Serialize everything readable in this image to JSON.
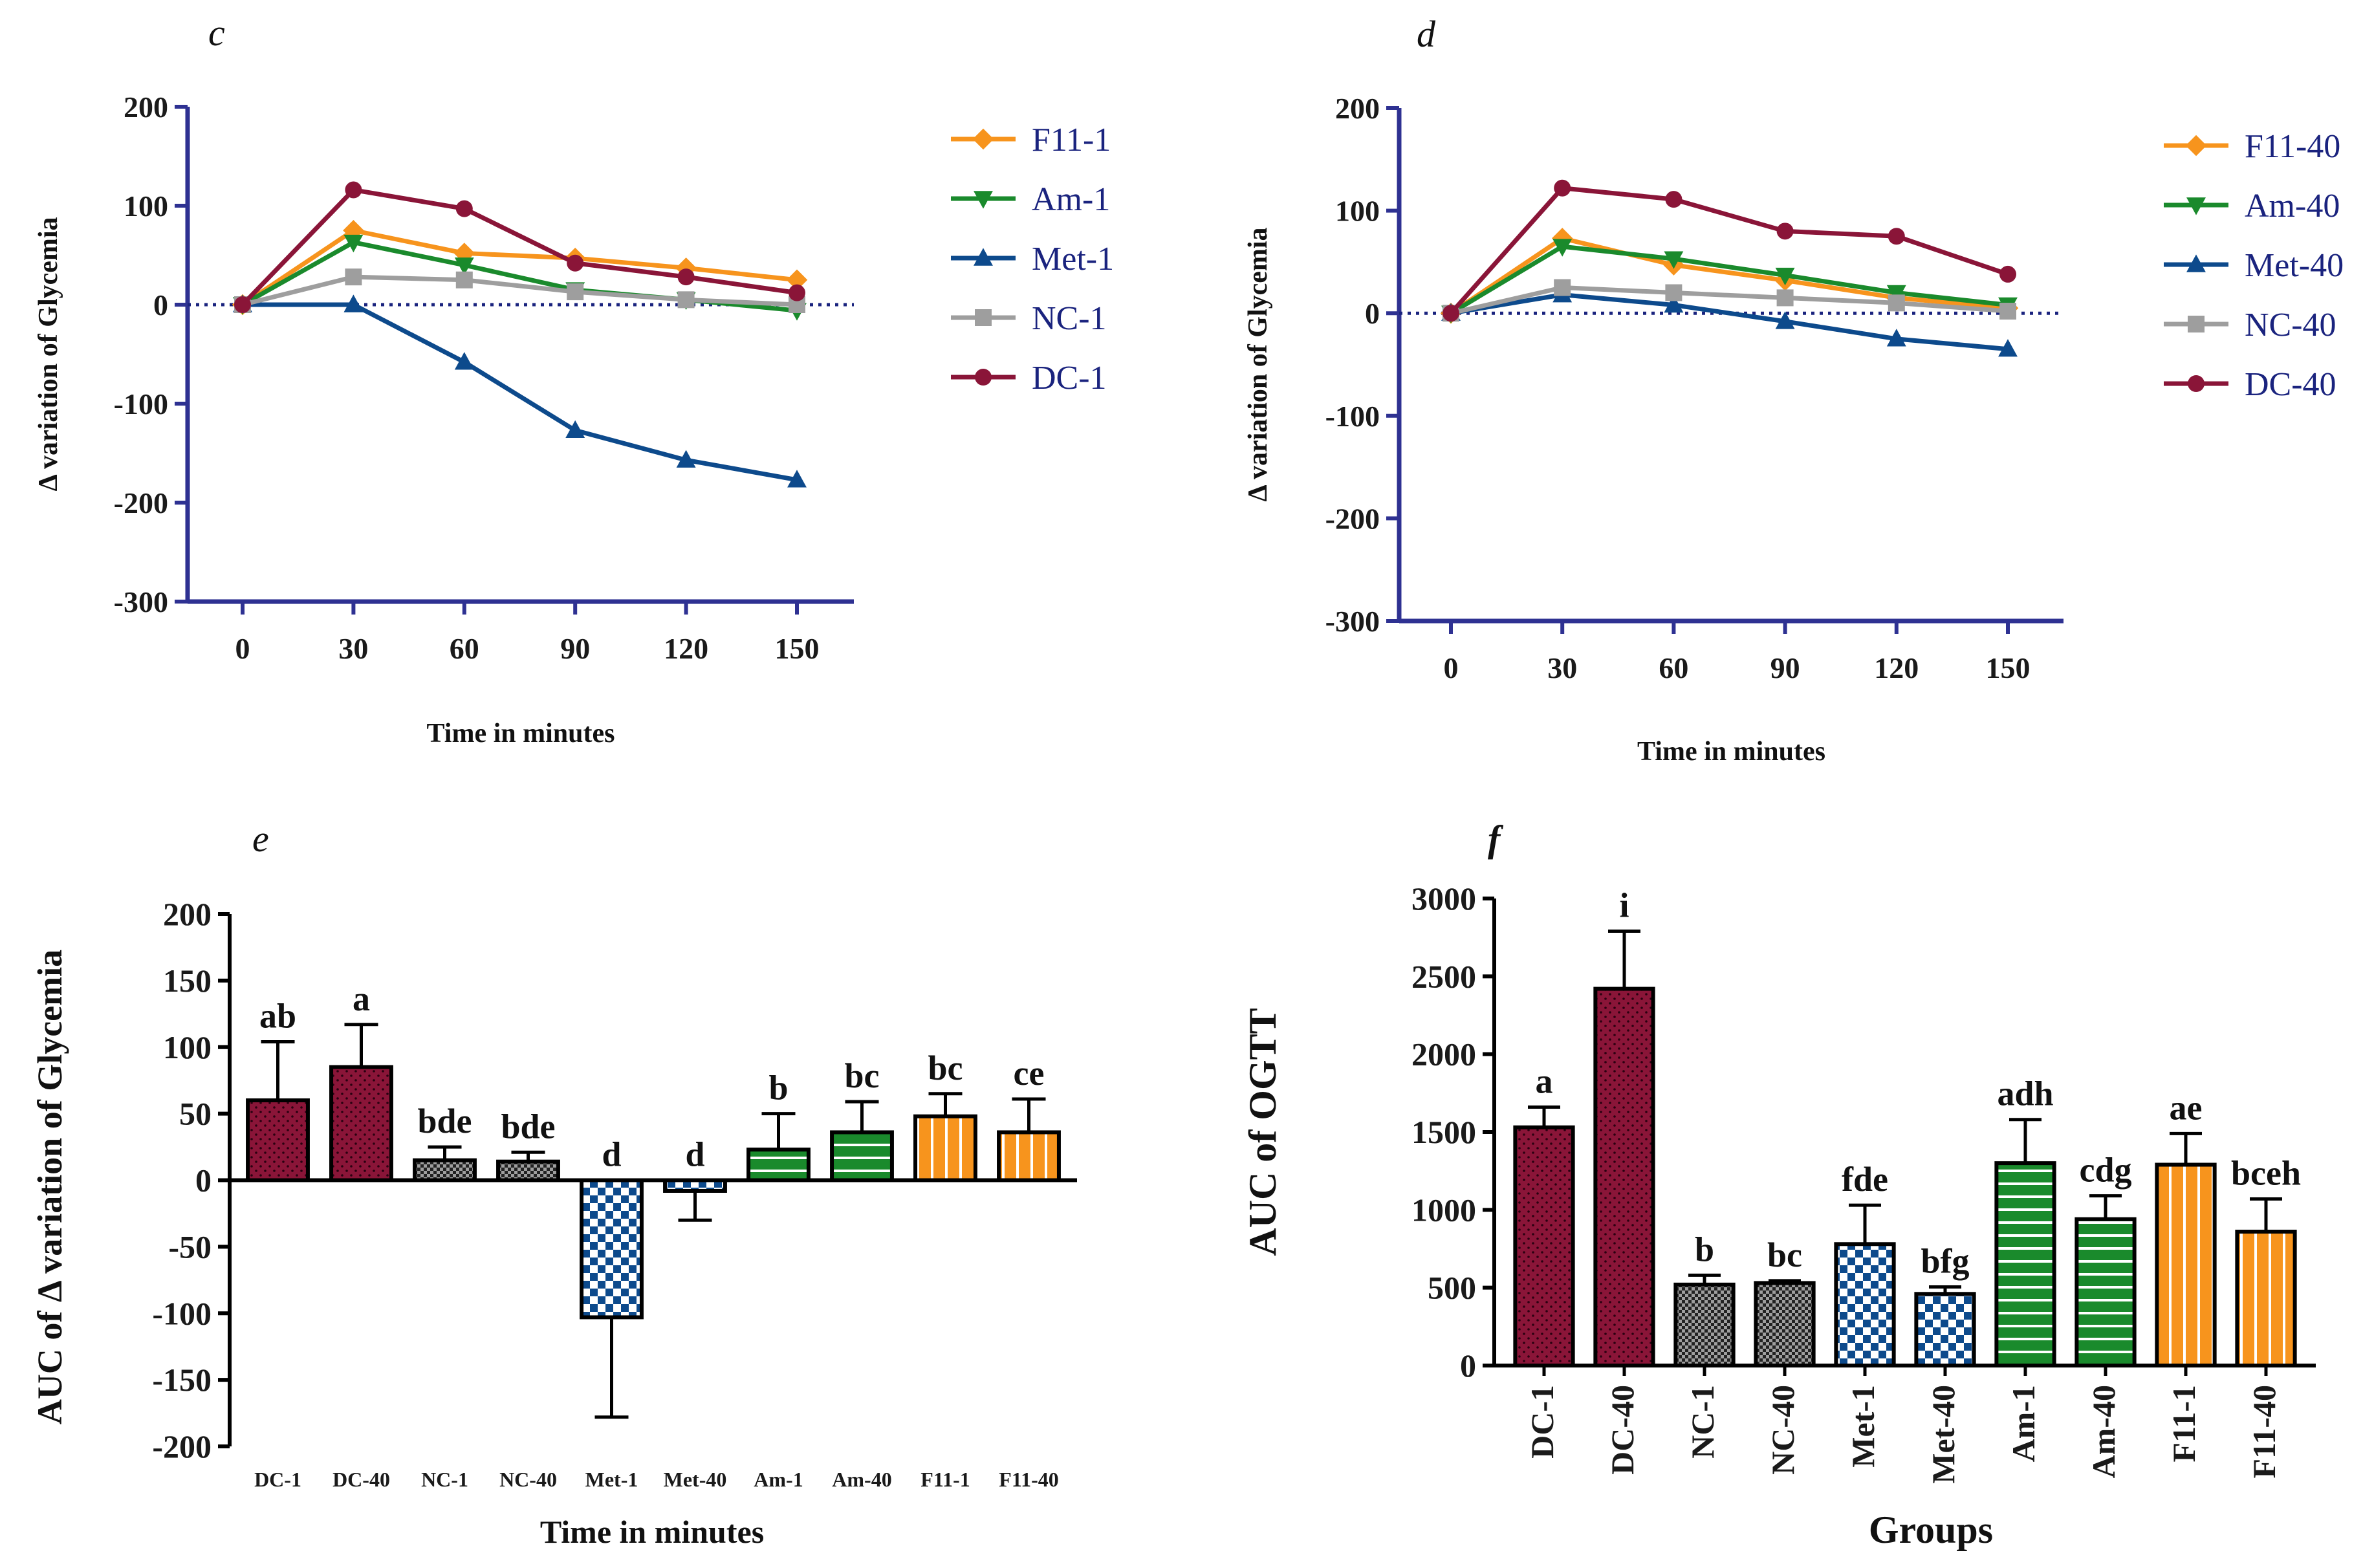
{
  "panels": {
    "c": "c",
    "d": "d",
    "e": "e",
    "f": "f"
  },
  "colors": {
    "F11": "#f7941d",
    "Am": "#1a8a2c",
    "Met": "#0d4a8c",
    "NC": "#9e9e9e",
    "DC": "#8a1538",
    "axis": "#2e3192",
    "zeroline": "#1a237e"
  },
  "chart_data": [
    {
      "id": "c",
      "type": "line",
      "title": "",
      "xlabel": "Time in minutes",
      "ylabel": "Δ variation of Glycemia",
      "x": [
        0,
        30,
        60,
        90,
        120,
        150
      ],
      "xticks": [
        "0",
        "30",
        "60",
        "90",
        "120",
        "150"
      ],
      "ylim": [
        -300,
        200
      ],
      "yticks": [
        "200",
        "100",
        "0",
        "-100",
        "-200",
        "-300"
      ],
      "ytick_values": [
        200,
        100,
        0,
        -100,
        -200,
        -300
      ],
      "legend_position": "right",
      "series": [
        {
          "name": "F11-1",
          "color_key": "F11",
          "marker": "diamond",
          "values": [
            0,
            75,
            52,
            47,
            37,
            25
          ]
        },
        {
          "name": "Am-1",
          "color_key": "Am",
          "marker": "triangle-down",
          "values": [
            0,
            63,
            40,
            15,
            5,
            -6
          ]
        },
        {
          "name": "Met-1",
          "color_key": "Met",
          "marker": "triangle-up",
          "values": [
            0,
            0,
            -58,
            -127,
            -157,
            -177
          ]
        },
        {
          "name": "NC-1",
          "color_key": "NC",
          "marker": "square",
          "values": [
            0,
            28,
            25,
            13,
            5,
            0
          ]
        },
        {
          "name": "DC-1",
          "color_key": "DC",
          "marker": "circle",
          "values": [
            0,
            116,
            97,
            42,
            28,
            12
          ]
        }
      ]
    },
    {
      "id": "d",
      "type": "line",
      "title": "",
      "xlabel": "Time in minutes",
      "ylabel": "Δ variation of Glycemia",
      "x": [
        0,
        30,
        60,
        90,
        120,
        150
      ],
      "xticks": [
        "0",
        "30",
        "60",
        "90",
        "120",
        "150"
      ],
      "ylim": [
        -300,
        200
      ],
      "yticks": [
        "200",
        "100",
        "0",
        "-100",
        "-200",
        "-300"
      ],
      "ytick_values": [
        200,
        100,
        0,
        -100,
        -200,
        -300
      ],
      "legend_position": "right",
      "series": [
        {
          "name": "F11-40",
          "color_key": "F11",
          "marker": "diamond",
          "values": [
            0,
            73,
            47,
            32,
            15,
            5
          ]
        },
        {
          "name": "Am-40",
          "color_key": "Am",
          "marker": "triangle-down",
          "values": [
            0,
            65,
            53,
            37,
            20,
            8
          ]
        },
        {
          "name": "Met-40",
          "color_key": "Met",
          "marker": "triangle-up",
          "values": [
            0,
            18,
            8,
            -8,
            -25,
            -35
          ]
        },
        {
          "name": "NC-40",
          "color_key": "NC",
          "marker": "square",
          "values": [
            0,
            25,
            20,
            15,
            10,
            2
          ]
        },
        {
          "name": "DC-40",
          "color_key": "DC",
          "marker": "circle",
          "values": [
            0,
            122,
            111,
            80,
            75,
            38
          ]
        }
      ]
    },
    {
      "id": "e",
      "type": "bar",
      "title": "",
      "xlabel": "Time in minutes",
      "ylabel": "AUC of Δ variation of Glycemia",
      "categories": [
        "DC-1",
        "DC-40",
        "NC-1",
        "NC-40",
        "Met-1",
        "Met-40",
        "Am-1",
        "Am-40",
        "F11-1",
        "F11-40"
      ],
      "color_keys": [
        "DC",
        "DC",
        "NC",
        "NC",
        "Met",
        "Met",
        "Am",
        "Am",
        "F11",
        "F11"
      ],
      "values": [
        60,
        85,
        15,
        14,
        -103,
        -8,
        23,
        36,
        48,
        36
      ],
      "errors": [
        44,
        32,
        10,
        7,
        75,
        22,
        27,
        23,
        17,
        25
      ],
      "letters": [
        "ab",
        "a",
        "bde",
        "bde",
        "d",
        "d",
        "b",
        "bc",
        "bc",
        "ce"
      ],
      "ylim": [
        -200,
        200
      ],
      "yticks": [
        "200",
        "150",
        "100",
        "50",
        "0",
        "-50",
        "-100",
        "-150",
        "-200"
      ],
      "ytick_values": [
        200,
        150,
        100,
        50,
        0,
        -50,
        -100,
        -150,
        -200
      ]
    },
    {
      "id": "f",
      "type": "bar",
      "title": "",
      "xlabel": "Groups",
      "ylabel": "AUC of OGTT",
      "categories": [
        "DC-1",
        "DC-40",
        "NC-1",
        "NC-40",
        "Met-1",
        "Met-40",
        "Am-1",
        "Am-40",
        "F11-1",
        "F11-40"
      ],
      "color_keys": [
        "DC",
        "DC",
        "NC",
        "NC",
        "Met",
        "Met",
        "Am",
        "Am",
        "F11",
        "F11"
      ],
      "values": [
        1530,
        2420,
        520,
        530,
        780,
        460,
        1300,
        940,
        1290,
        860
      ],
      "errors": [
        130,
        370,
        60,
        15,
        250,
        45,
        280,
        150,
        200,
        210
      ],
      "letters": [
        "a",
        "i",
        "b",
        "bc",
        "fde",
        "bfg",
        "adh",
        "cdg",
        "ae",
        "bceh"
      ],
      "ylim": [
        0,
        3000
      ],
      "yticks": [
        "3000",
        "2500",
        "2000",
        "1500",
        "1000",
        "500",
        "0"
      ],
      "ytick_values": [
        3000,
        2500,
        2000,
        1500,
        1000,
        500,
        0
      ]
    }
  ]
}
